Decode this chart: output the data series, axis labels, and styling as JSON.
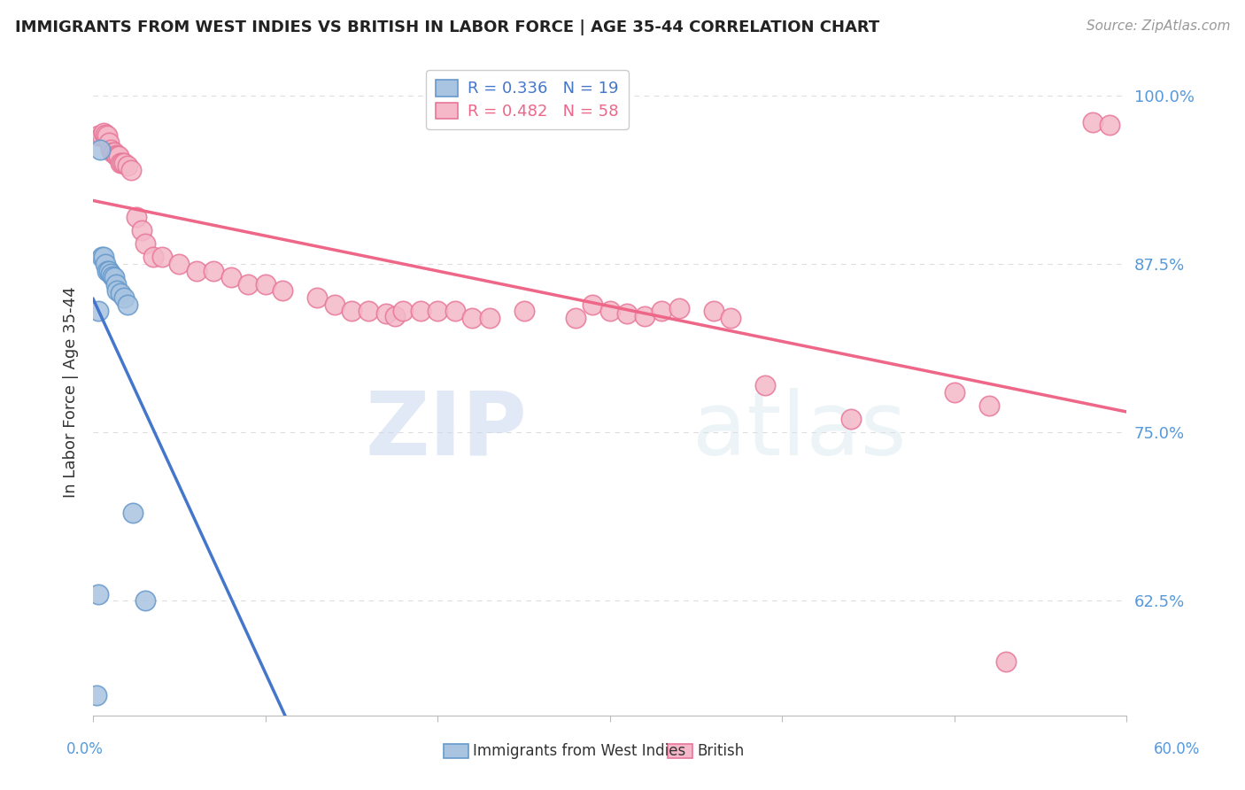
{
  "title": "IMMIGRANTS FROM WEST INDIES VS BRITISH IN LABOR FORCE | AGE 35-44 CORRELATION CHART",
  "source": "Source: ZipAtlas.com",
  "ylabel": "In Labor Force | Age 35-44",
  "xlim": [
    0.0,
    0.6
  ],
  "ylim": [
    0.54,
    1.02
  ],
  "xticks": [
    0.0,
    0.1,
    0.2,
    0.3,
    0.4,
    0.5,
    0.6
  ],
  "yticks": [
    0.625,
    0.75,
    0.875,
    1.0
  ],
  "yticklabels": [
    "62.5%",
    "75.0%",
    "87.5%",
    "100.0%"
  ],
  "west_indies_color": "#a8c4e0",
  "british_color": "#f4b8c8",
  "west_indies_edge_color": "#6699cc",
  "british_edge_color": "#e87799",
  "trend_blue": "#4477cc",
  "trend_pink": "#ee6688",
  "legend_R_wi": "R = 0.336",
  "legend_N_wi": "N = 19",
  "legend_R_br": "R = 0.482",
  "legend_N_br": "N = 58",
  "west_indies_x": [
    0.002,
    0.003,
    0.004,
    0.005,
    0.006,
    0.007,
    0.008,
    0.009,
    0.01,
    0.011,
    0.012,
    0.013,
    0.014,
    0.016,
    0.018,
    0.02,
    0.023,
    0.03,
    0.003
  ],
  "west_indies_y": [
    0.555,
    0.63,
    0.96,
    0.88,
    0.88,
    0.875,
    0.87,
    0.87,
    0.868,
    0.866,
    0.865,
    0.86,
    0.855,
    0.853,
    0.85,
    0.845,
    0.69,
    0.625,
    0.84
  ],
  "british_x": [
    0.003,
    0.005,
    0.006,
    0.007,
    0.008,
    0.009,
    0.01,
    0.011,
    0.012,
    0.013,
    0.014,
    0.015,
    0.016,
    0.017,
    0.018,
    0.02,
    0.022,
    0.025,
    0.028,
    0.03,
    0.035,
    0.04,
    0.05,
    0.06,
    0.07,
    0.08,
    0.09,
    0.1,
    0.11,
    0.13,
    0.14,
    0.15,
    0.16,
    0.17,
    0.175,
    0.18,
    0.19,
    0.2,
    0.21,
    0.22,
    0.23,
    0.25,
    0.28,
    0.29,
    0.3,
    0.31,
    0.32,
    0.33,
    0.34,
    0.36,
    0.37,
    0.39,
    0.44,
    0.5,
    0.52,
    0.53,
    0.58,
    0.59
  ],
  "british_y": [
    0.97,
    0.97,
    0.972,
    0.971,
    0.97,
    0.965,
    0.96,
    0.958,
    0.958,
    0.956,
    0.955,
    0.955,
    0.95,
    0.95,
    0.95,
    0.948,
    0.945,
    0.91,
    0.9,
    0.89,
    0.88,
    0.88,
    0.875,
    0.87,
    0.87,
    0.865,
    0.86,
    0.86,
    0.855,
    0.85,
    0.845,
    0.84,
    0.84,
    0.838,
    0.836,
    0.84,
    0.84,
    0.84,
    0.84,
    0.835,
    0.835,
    0.84,
    0.835,
    0.845,
    0.84,
    0.838,
    0.836,
    0.84,
    0.842,
    0.84,
    0.835,
    0.785,
    0.76,
    0.78,
    0.77,
    0.58,
    0.98,
    0.978
  ],
  "watermark_zip": "ZIP",
  "watermark_atlas": "atlas",
  "background_color": "#ffffff",
  "grid_color": "#dddddd"
}
